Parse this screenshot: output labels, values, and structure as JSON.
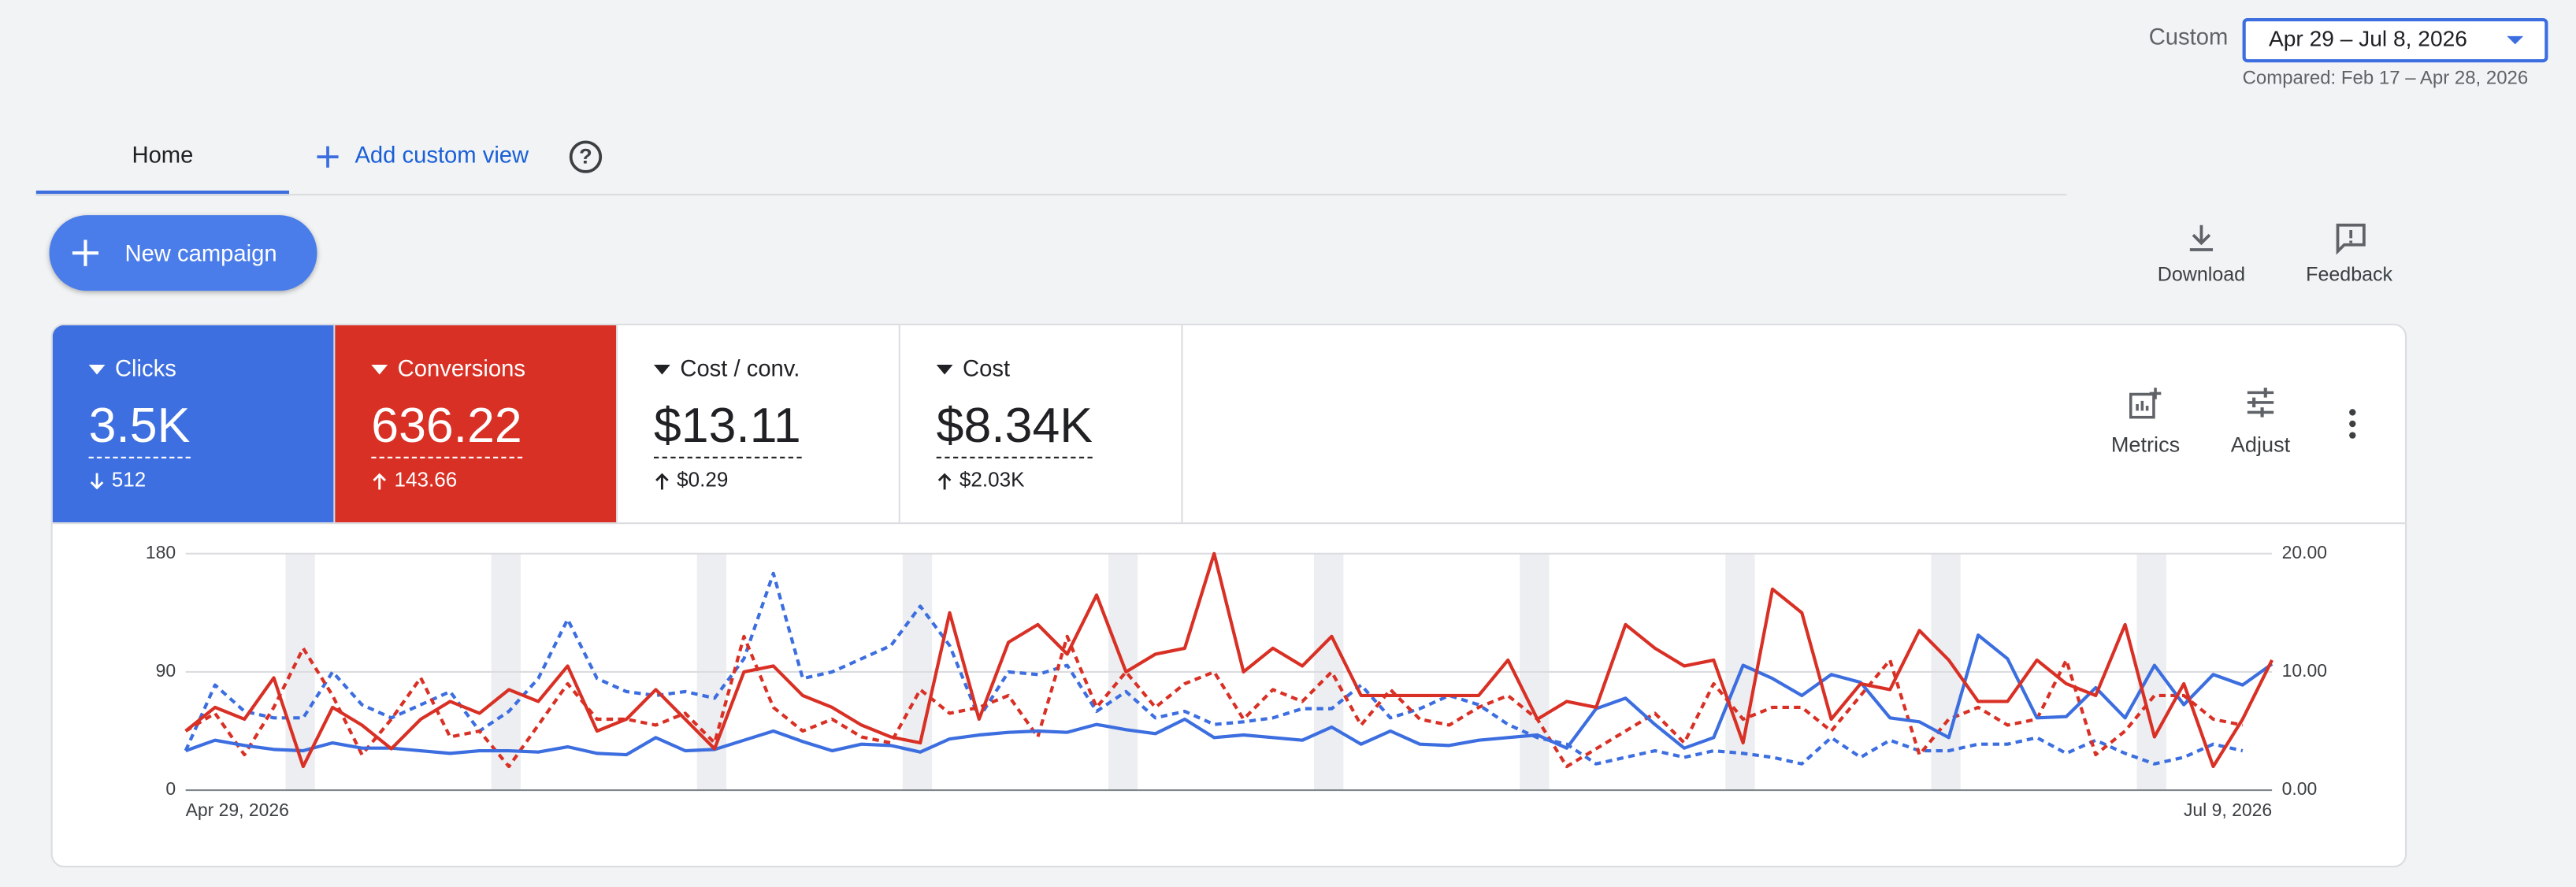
{
  "header": {
    "range_label": "Custom",
    "date_range": "Apr 29 – Jul 8, 2026",
    "compared": "Compared: Feb 17 – Apr 28, 2026"
  },
  "tabs": {
    "home": "Home",
    "add_view": "Add custom view"
  },
  "actions": {
    "new_campaign": "New campaign",
    "download": "Download",
    "feedback": "Feedback",
    "metrics": "Metrics",
    "adjust": "Adjust"
  },
  "metrics": [
    {
      "label": "Clicks",
      "value": "3.5K",
      "delta": "512",
      "direction": "down",
      "bg": "#3d6fe0",
      "fg": "#ffffff"
    },
    {
      "label": "Conversions",
      "value": "636.22",
      "delta": "143.66",
      "direction": "up",
      "bg": "#d93025",
      "fg": "#ffffff"
    },
    {
      "label": "Cost / conv.",
      "value": "$13.11",
      "delta": "$0.29",
      "direction": "up",
      "bg": "#ffffff",
      "fg": "#202124"
    },
    {
      "label": "Cost",
      "value": "$8.34K",
      "delta": "$2.03K",
      "direction": "up",
      "bg": "#ffffff",
      "fg": "#202124"
    }
  ],
  "chart_data": {
    "type": "line",
    "categories": [
      "Apr 29, 2026",
      null,
      null,
      null,
      null,
      null,
      null,
      null,
      null,
      null,
      null,
      null,
      null,
      null,
      null,
      null,
      null,
      null,
      null,
      null,
      null,
      null,
      null,
      null,
      null,
      null,
      null,
      null,
      null,
      null,
      null,
      null,
      null,
      null,
      null,
      null,
      null,
      null,
      null,
      null,
      null,
      null,
      null,
      null,
      null,
      null,
      null,
      null,
      null,
      null,
      null,
      null,
      null,
      null,
      null,
      null,
      null,
      null,
      null,
      null,
      null,
      null,
      null,
      null,
      null,
      null,
      null,
      null,
      null,
      null,
      null,
      "Jul 9, 2026"
    ],
    "ylim": [
      0,
      180
    ],
    "yticks": [
      0,
      90,
      180
    ],
    "y2lim": [
      0,
      20
    ],
    "y2ticks": [
      {
        "value": 0,
        "label": "0.00"
      },
      {
        "value": 10,
        "label": "10.00"
      },
      {
        "value": 20,
        "label": "20.00"
      }
    ],
    "grid": true,
    "series": [
      {
        "color": "#3c6ee0",
        "dashed": false,
        "values": [
          30,
          38,
          34,
          31,
          30,
          36,
          32,
          32,
          30,
          28,
          30,
          30,
          29,
          33,
          28,
          27,
          40,
          30,
          31,
          38,
          45,
          37,
          30,
          35,
          34,
          29,
          39,
          42,
          44,
          45,
          44,
          50,
          46,
          43,
          54,
          40,
          42,
          40,
          38,
          48,
          35,
          45,
          35,
          34,
          38,
          40,
          42,
          32,
          62,
          70,
          50,
          32,
          40,
          95,
          85,
          72,
          88,
          82,
          55,
          52,
          40,
          118,
          100,
          55,
          56,
          78,
          55,
          95,
          65,
          88,
          80,
          96
        ]
      },
      {
        "color": "#d93025",
        "dashed": false,
        "axis": "y2",
        "values": [
          5,
          7,
          6,
          9.5,
          2,
          7,
          5.5,
          3.5,
          6,
          7.5,
          6.5,
          8.5,
          7.5,
          10.5,
          5,
          6,
          8.5,
          6,
          3.5,
          10,
          10.5,
          8,
          7,
          5.5,
          4.5,
          4,
          15,
          6,
          12.5,
          14,
          11.5,
          16.5,
          10,
          11.5,
          12,
          20,
          10,
          12,
          10.5,
          13,
          8,
          8,
          8,
          8,
          8,
          11,
          6,
          7.5,
          7,
          14,
          12,
          10.5,
          11,
          4,
          17,
          15,
          6,
          9,
          8.5,
          13.5,
          11,
          7.5,
          7.5,
          11,
          9,
          8,
          14,
          4.5,
          9,
          2,
          6,
          11
        ]
      },
      {
        "color": "#3c6ee0",
        "dashed": true,
        "values": [
          30,
          80,
          60,
          55,
          55,
          90,
          65,
          55,
          65,
          75,
          45,
          60,
          85,
          130,
          85,
          75,
          72,
          75,
          70,
          100,
          165,
          85,
          90,
          100,
          110,
          140,
          110,
          55,
          90,
          88,
          95,
          60,
          75,
          55,
          60,
          50,
          52,
          55,
          62,
          62,
          80,
          55,
          62,
          72,
          65,
          50,
          40,
          35,
          20,
          25,
          30,
          25,
          30,
          28,
          25,
          20,
          40,
          25,
          38,
          30,
          30,
          35,
          35,
          40,
          28,
          38,
          28,
          20,
          25,
          35,
          30,
          null
        ]
      },
      {
        "color": "#d93025",
        "dashed": true,
        "axis": "y2",
        "values": [
          5,
          6.5,
          3,
          7,
          12,
          8,
          3,
          6,
          9.5,
          4.5,
          5,
          2,
          5.5,
          9,
          6,
          6,
          5.5,
          6.5,
          4,
          13,
          7,
          5,
          6,
          4.5,
          4,
          8.5,
          6.5,
          7,
          8,
          4.5,
          13,
          7,
          10,
          7,
          9,
          10,
          6,
          8.5,
          7.5,
          10,
          5.5,
          8.5,
          6,
          5.5,
          7,
          8,
          6,
          2,
          3.5,
          5,
          6.5,
          4,
          9,
          6,
          7,
          7,
          5,
          8,
          11,
          3,
          6,
          7,
          5.5,
          6,
          11,
          3,
          5,
          8,
          8,
          6,
          5.5,
          null
        ]
      }
    ]
  }
}
